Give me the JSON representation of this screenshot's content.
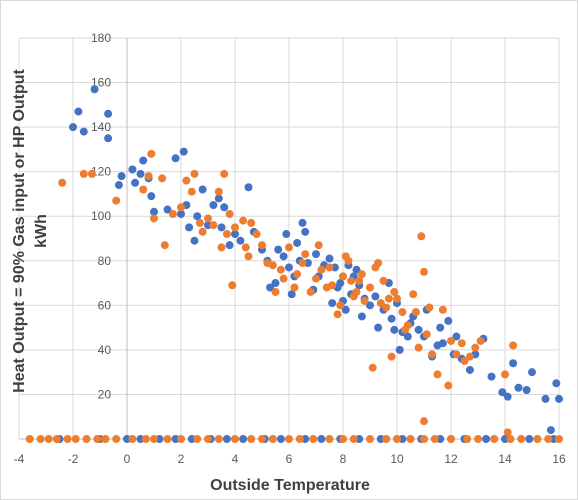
{
  "chart_data": {
    "type": "scatter",
    "xlabel": "Outside Temperature",
    "ylabel_line1": "Heat Output = 90% Gas input or HP Output",
    "ylabel_line2": "kWh",
    "xlim": [
      -4,
      16
    ],
    "ylim": [
      0,
      180
    ],
    "xticks": [
      -4,
      -2,
      0,
      2,
      4,
      6,
      8,
      10,
      12,
      14,
      16
    ],
    "yticks": [
      20,
      40,
      60,
      80,
      100,
      120,
      140,
      160,
      180
    ],
    "grid": true,
    "legend": "none",
    "series": [
      {
        "color": "#4472c4",
        "points": [
          [
            -2.0,
            140
          ],
          [
            -1.8,
            147
          ],
          [
            -1.6,
            138
          ],
          [
            -1.2,
            157
          ],
          [
            -0.7,
            146
          ],
          [
            -0.7,
            135
          ],
          [
            -0.3,
            114
          ],
          [
            -0.2,
            118
          ],
          [
            0.2,
            121
          ],
          [
            0.3,
            115
          ],
          [
            0.5,
            119
          ],
          [
            0.6,
            125
          ],
          [
            0.8,
            117
          ],
          [
            0.9,
            109
          ],
          [
            1.0,
            102
          ],
          [
            1.5,
            103
          ],
          [
            1.8,
            126
          ],
          [
            2.0,
            101
          ],
          [
            2.1,
            129
          ],
          [
            2.2,
            105
          ],
          [
            2.3,
            95
          ],
          [
            2.5,
            89
          ],
          [
            2.6,
            100
          ],
          [
            2.8,
            112
          ],
          [
            3.0,
            96
          ],
          [
            3.2,
            105
          ],
          [
            3.4,
            108
          ],
          [
            3.5,
            95
          ],
          [
            3.6,
            104
          ],
          [
            3.8,
            87
          ],
          [
            4.0,
            92
          ],
          [
            4.2,
            89
          ],
          [
            4.5,
            113
          ],
          [
            4.7,
            93
          ],
          [
            5.0,
            85
          ],
          [
            5.2,
            80
          ],
          [
            5.3,
            68
          ],
          [
            5.5,
            70
          ],
          [
            5.6,
            85
          ],
          [
            5.8,
            82
          ],
          [
            5.9,
            92
          ],
          [
            6.0,
            77
          ],
          [
            6.1,
            65
          ],
          [
            6.2,
            73
          ],
          [
            6.3,
            88
          ],
          [
            6.4,
            80
          ],
          [
            6.5,
            97
          ],
          [
            6.6,
            93
          ],
          [
            6.7,
            79
          ],
          [
            6.9,
            67
          ],
          [
            7.0,
            83
          ],
          [
            7.1,
            73
          ],
          [
            7.3,
            78
          ],
          [
            7.5,
            81
          ],
          [
            7.6,
            61
          ],
          [
            7.7,
            77
          ],
          [
            7.8,
            68
          ],
          [
            7.9,
            70
          ],
          [
            8.0,
            62
          ],
          [
            8.1,
            58
          ],
          [
            8.2,
            78
          ],
          [
            8.3,
            65
          ],
          [
            8.4,
            73
          ],
          [
            8.5,
            76
          ],
          [
            8.6,
            69
          ],
          [
            8.7,
            55
          ],
          [
            8.8,
            63
          ],
          [
            9.0,
            60
          ],
          [
            9.2,
            64
          ],
          [
            9.3,
            50
          ],
          [
            9.5,
            58
          ],
          [
            9.7,
            70
          ],
          [
            9.8,
            54
          ],
          [
            9.9,
            49
          ],
          [
            10.0,
            61
          ],
          [
            10.1,
            40
          ],
          [
            10.2,
            48
          ],
          [
            10.4,
            46
          ],
          [
            10.5,
            52
          ],
          [
            10.6,
            55
          ],
          [
            10.8,
            49
          ],
          [
            11.0,
            46
          ],
          [
            11.1,
            58
          ],
          [
            11.3,
            37
          ],
          [
            11.5,
            42
          ],
          [
            11.6,
            50
          ],
          [
            11.7,
            43
          ],
          [
            11.9,
            53
          ],
          [
            12.1,
            38
          ],
          [
            12.2,
            46
          ],
          [
            12.4,
            36
          ],
          [
            12.7,
            31
          ],
          [
            12.9,
            38
          ],
          [
            13.2,
            45
          ],
          [
            13.5,
            28
          ],
          [
            13.9,
            21
          ],
          [
            14.1,
            19
          ],
          [
            14.3,
            34
          ],
          [
            14.5,
            23
          ],
          [
            14.8,
            22
          ],
          [
            15.0,
            30
          ],
          [
            15.5,
            18
          ],
          [
            15.7,
            4
          ],
          [
            15.9,
            25
          ],
          [
            16.0,
            18
          ],
          [
            -2.5,
            0
          ],
          [
            -1.0,
            0
          ],
          [
            0.0,
            0
          ],
          [
            0.5,
            0
          ],
          [
            1.2,
            0
          ],
          [
            1.8,
            0
          ],
          [
            2.4,
            0
          ],
          [
            3.1,
            0
          ],
          [
            3.7,
            0
          ],
          [
            4.3,
            0
          ],
          [
            5.1,
            0
          ],
          [
            5.7,
            0
          ],
          [
            6.6,
            0
          ],
          [
            7.2,
            0
          ],
          [
            7.9,
            0
          ],
          [
            8.6,
            0
          ],
          [
            9.4,
            0
          ],
          [
            10.2,
            0
          ],
          [
            10.9,
            0
          ],
          [
            11.6,
            0
          ],
          [
            12.5,
            0
          ],
          [
            13.3,
            0
          ],
          [
            14.0,
            0
          ],
          [
            14.9,
            0
          ],
          [
            15.8,
            0
          ]
        ]
      },
      {
        "color": "#ed7d31",
        "points": [
          [
            -2.4,
            115
          ],
          [
            -1.6,
            119
          ],
          [
            -1.3,
            119
          ],
          [
            -0.4,
            107
          ],
          [
            0.6,
            112
          ],
          [
            0.8,
            118
          ],
          [
            0.9,
            128
          ],
          [
            1.0,
            99
          ],
          [
            1.3,
            117
          ],
          [
            1.4,
            87
          ],
          [
            1.7,
            101
          ],
          [
            2.0,
            104
          ],
          [
            2.2,
            116
          ],
          [
            2.4,
            111
          ],
          [
            2.5,
            119
          ],
          [
            2.7,
            97
          ],
          [
            2.8,
            93
          ],
          [
            3.0,
            99
          ],
          [
            3.2,
            96
          ],
          [
            3.4,
            111
          ],
          [
            3.5,
            86
          ],
          [
            3.6,
            119
          ],
          [
            3.7,
            92
          ],
          [
            3.8,
            101
          ],
          [
            3.9,
            69
          ],
          [
            4.0,
            95
          ],
          [
            4.3,
            98
          ],
          [
            4.4,
            86
          ],
          [
            4.5,
            82
          ],
          [
            4.6,
            97
          ],
          [
            4.8,
            92
          ],
          [
            5.0,
            87
          ],
          [
            5.2,
            79
          ],
          [
            5.4,
            78
          ],
          [
            5.5,
            66
          ],
          [
            5.7,
            76
          ],
          [
            5.8,
            72
          ],
          [
            6.0,
            86
          ],
          [
            6.2,
            68
          ],
          [
            6.3,
            74
          ],
          [
            6.5,
            79
          ],
          [
            6.6,
            83
          ],
          [
            6.8,
            66
          ],
          [
            7.0,
            72
          ],
          [
            7.1,
            87
          ],
          [
            7.2,
            76
          ],
          [
            7.4,
            68
          ],
          [
            7.5,
            77
          ],
          [
            7.6,
            69
          ],
          [
            7.8,
            56
          ],
          [
            7.9,
            60
          ],
          [
            8.0,
            73
          ],
          [
            8.1,
            82
          ],
          [
            8.2,
            80
          ],
          [
            8.3,
            71
          ],
          [
            8.4,
            64
          ],
          [
            8.5,
            66
          ],
          [
            8.6,
            71
          ],
          [
            8.7,
            74
          ],
          [
            8.8,
            62
          ],
          [
            9.0,
            68
          ],
          [
            9.1,
            32
          ],
          [
            9.2,
            77
          ],
          [
            9.3,
            79
          ],
          [
            9.4,
            61
          ],
          [
            9.5,
            71
          ],
          [
            9.6,
            59
          ],
          [
            9.7,
            63
          ],
          [
            9.8,
            37
          ],
          [
            9.9,
            66
          ],
          [
            10.0,
            63
          ],
          [
            10.2,
            57
          ],
          [
            10.3,
            49
          ],
          [
            10.4,
            51
          ],
          [
            10.6,
            65
          ],
          [
            10.7,
            57
          ],
          [
            10.8,
            41
          ],
          [
            10.9,
            91
          ],
          [
            11.0,
            75
          ],
          [
            11.1,
            47
          ],
          [
            11.2,
            59
          ],
          [
            11.3,
            38
          ],
          [
            11.5,
            29
          ],
          [
            11.7,
            58
          ],
          [
            11.9,
            24
          ],
          [
            12.0,
            44
          ],
          [
            12.2,
            38
          ],
          [
            12.4,
            43
          ],
          [
            12.5,
            35
          ],
          [
            12.7,
            37
          ],
          [
            12.9,
            41
          ],
          [
            13.1,
            44
          ],
          [
            14.0,
            29
          ],
          [
            14.1,
            3
          ],
          [
            14.3,
            42
          ],
          [
            11.0,
            8
          ],
          [
            -3.6,
            0
          ],
          [
            -3.2,
            0
          ],
          [
            -2.9,
            0
          ],
          [
            -2.6,
            0
          ],
          [
            -2.2,
            0
          ],
          [
            -1.9,
            0
          ],
          [
            -1.5,
            0
          ],
          [
            -1.1,
            0
          ],
          [
            -0.8,
            0
          ],
          [
            -0.4,
            0
          ],
          [
            0.2,
            0
          ],
          [
            0.7,
            0
          ],
          [
            1.0,
            0
          ],
          [
            1.5,
            0
          ],
          [
            2.0,
            0
          ],
          [
            2.6,
            0
          ],
          [
            3.0,
            0
          ],
          [
            3.4,
            0
          ],
          [
            4.0,
            0
          ],
          [
            4.6,
            0
          ],
          [
            5.0,
            0
          ],
          [
            5.4,
            0
          ],
          [
            6.0,
            0
          ],
          [
            6.4,
            0
          ],
          [
            6.9,
            0
          ],
          [
            7.5,
            0
          ],
          [
            8.0,
            0
          ],
          [
            8.4,
            0
          ],
          [
            9.0,
            0
          ],
          [
            9.6,
            0
          ],
          [
            10.0,
            0
          ],
          [
            10.5,
            0
          ],
          [
            11.0,
            0
          ],
          [
            11.4,
            0
          ],
          [
            12.0,
            0
          ],
          [
            12.6,
            0
          ],
          [
            13.0,
            0
          ],
          [
            13.6,
            0
          ],
          [
            14.2,
            0
          ],
          [
            14.6,
            0
          ],
          [
            15.2,
            0
          ],
          [
            15.6,
            0
          ],
          [
            16.0,
            0
          ]
        ]
      }
    ]
  }
}
